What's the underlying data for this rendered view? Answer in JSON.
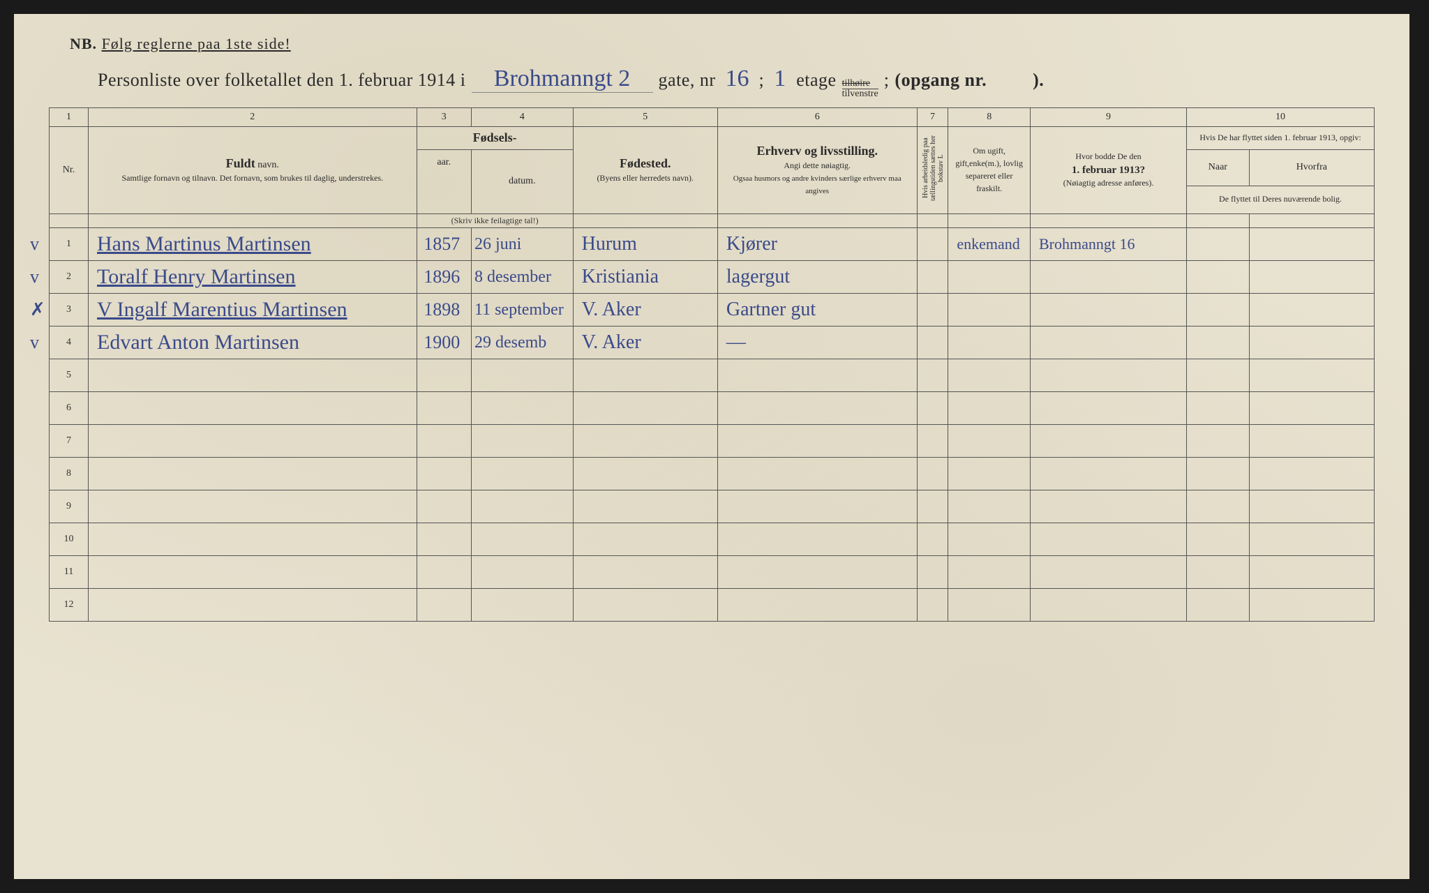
{
  "nb_prefix": "NB.",
  "nb_text": "Følg reglerne paa 1ste side!",
  "title_prefix": "Personliste over folketallet den 1. februar 1914 i",
  "street_handwritten": "Brohmanngt 2",
  "gate_label": "gate, nr",
  "gate_nr": "16",
  "semicolon": ";",
  "etage_nr": "1",
  "etage_label": "etage",
  "fraction_top": "tilhøire",
  "fraction_bot": "tilvenstre",
  "opgang_label": "(opgang nr.",
  "opgang_nr": "",
  "close_paren": ").",
  "col_numbers": [
    "1",
    "2",
    "3",
    "4",
    "5",
    "6",
    "7",
    "8",
    "9",
    "10"
  ],
  "headers": {
    "nr": "Nr.",
    "fuldt": "Fuldt",
    "navn": "navn.",
    "navn_sub": "Samtlige fornavn og tilnavn. Det fornavn, som brukes til daglig, understrekes.",
    "fodsels": "Fødsels-",
    "aar": "aar.",
    "datum": "datum.",
    "skriv": "(Skriv ikke feilagtige tal!)",
    "fodested": "Fødested.",
    "fodested_sub": "(Byens eller herredets navn).",
    "erhverv": "Erhverv og livsstilling.",
    "erhverv_sub": "Angi dette nøiagtig.",
    "erhverv_sub2": "Ogsaa husmors og andre kvinders særlige erhverv maa angives",
    "col7": "Hvis arbeidsledig paa tællingstiden sættes her bokstav L",
    "col8": "Om ugift, gift,enke(m.), lovlig separeret eller fraskilt.",
    "col9_title": "Hvor bodde De den",
    "col9_date": "1. februar 1913?",
    "col9_sub": "(Nøiagtig adresse anføres).",
    "col10_title": "Hvis De har flyttet siden 1. februar 1913, opgiv:",
    "naar": "Naar",
    "hvorfra": "Hvorfra",
    "col10_sub": "De flyttet til Deres nuværende bolig."
  },
  "rows": [
    {
      "mark": "v",
      "nr": "1",
      "name": "Hans Martinus Martinsen",
      "aar": "1857",
      "datum": "26 juni",
      "fodested": "Hurum",
      "erhverv": "Kjører",
      "c7": "",
      "c8": "enkemand",
      "c9": "Brohmanngt 16",
      "naar": "",
      "hvorfra": "",
      "underline": true
    },
    {
      "mark": "v",
      "nr": "2",
      "name": "Toralf Henry Martinsen",
      "aar": "1896",
      "datum": "8 desember",
      "fodested": "Kristiania",
      "erhverv": "lagergut",
      "c7": "",
      "c8": "",
      "c9": "",
      "naar": "",
      "hvorfra": "",
      "underline": true
    },
    {
      "mark": "✗",
      "nr": "3",
      "name": "V Ingalf Marentius Martinsen",
      "aar": "1898",
      "datum": "11 september",
      "fodested": "V. Aker",
      "erhverv": "Gartner gut",
      "c7": "",
      "c8": "",
      "c9": "",
      "naar": "",
      "hvorfra": "",
      "underline": true
    },
    {
      "mark": "v",
      "nr": "4",
      "name": "Edvart Anton Martinsen",
      "aar": "1900",
      "datum": "29 desemb",
      "fodested": "V. Aker",
      "erhverv": "—",
      "c7": "",
      "c8": "",
      "c9": "",
      "naar": "",
      "hvorfra": "",
      "underline": false
    },
    {
      "mark": "",
      "nr": "5",
      "name": "",
      "aar": "",
      "datum": "",
      "fodested": "",
      "erhverv": "",
      "c7": "",
      "c8": "",
      "c9": "",
      "naar": "",
      "hvorfra": ""
    },
    {
      "mark": "",
      "nr": "6",
      "name": "",
      "aar": "",
      "datum": "",
      "fodested": "",
      "erhverv": "",
      "c7": "",
      "c8": "",
      "c9": "",
      "naar": "",
      "hvorfra": ""
    },
    {
      "mark": "",
      "nr": "7",
      "name": "",
      "aar": "",
      "datum": "",
      "fodested": "",
      "erhverv": "",
      "c7": "",
      "c8": "",
      "c9": "",
      "naar": "",
      "hvorfra": ""
    },
    {
      "mark": "",
      "nr": "8",
      "name": "",
      "aar": "",
      "datum": "",
      "fodested": "",
      "erhverv": "",
      "c7": "",
      "c8": "",
      "c9": "",
      "naar": "",
      "hvorfra": ""
    },
    {
      "mark": "",
      "nr": "9",
      "name": "",
      "aar": "",
      "datum": "",
      "fodested": "",
      "erhverv": "",
      "c7": "",
      "c8": "",
      "c9": "",
      "naar": "",
      "hvorfra": ""
    },
    {
      "mark": "",
      "nr": "10",
      "name": "",
      "aar": "",
      "datum": "",
      "fodested": "",
      "erhverv": "",
      "c7": "",
      "c8": "",
      "c9": "",
      "naar": "",
      "hvorfra": ""
    },
    {
      "mark": "",
      "nr": "11",
      "name": "",
      "aar": "",
      "datum": "",
      "fodested": "",
      "erhverv": "",
      "c7": "",
      "c8": "",
      "c9": "",
      "naar": "",
      "hvorfra": ""
    },
    {
      "mark": "",
      "nr": "12",
      "name": "",
      "aar": "",
      "datum": "",
      "fodested": "",
      "erhverv": "",
      "c7": "",
      "c8": "",
      "c9": "",
      "naar": "",
      "hvorfra": ""
    }
  ],
  "colors": {
    "paper": "#e8e2d0",
    "ink_print": "#2a2a2a",
    "ink_hand": "#3a4a8a",
    "border": "#555555"
  }
}
